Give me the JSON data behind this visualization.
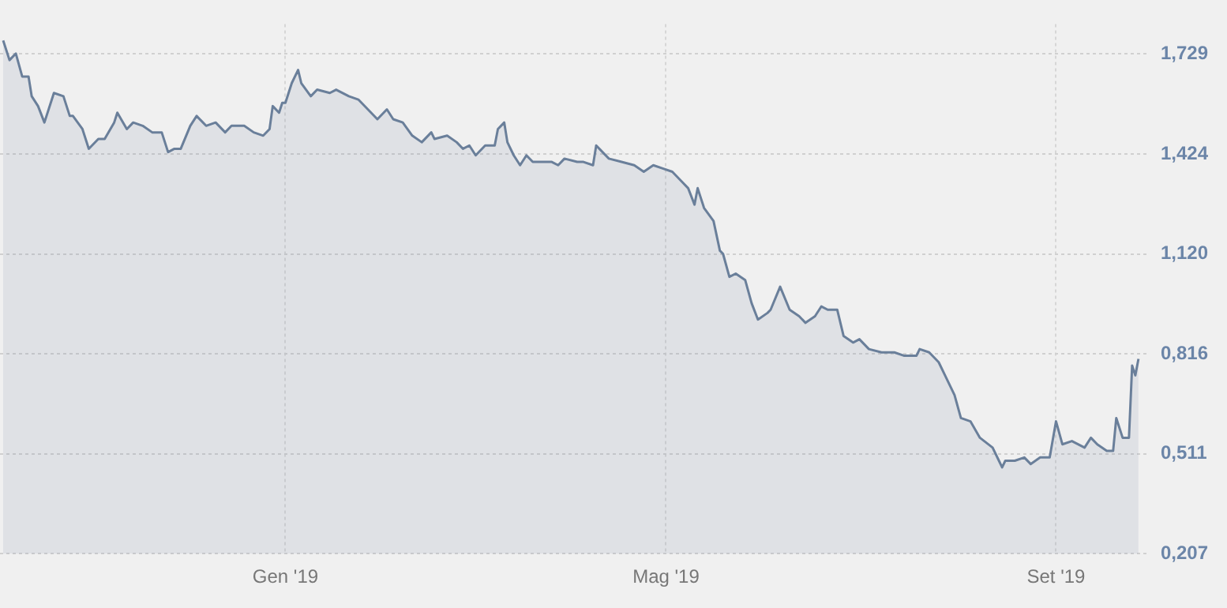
{
  "chart_data": {
    "type": "area",
    "x": [
      "2018-10-04",
      "2018-10-06",
      "2018-10-08",
      "2018-10-10",
      "2018-10-12",
      "2018-10-13",
      "2018-10-15",
      "2018-10-17",
      "2018-10-19",
      "2018-10-20",
      "2018-10-23",
      "2018-10-25",
      "2018-10-26",
      "2018-10-29",
      "2018-10-31",
      "2018-11-03",
      "2018-11-05",
      "2018-11-08",
      "2018-11-09",
      "2018-11-12",
      "2018-11-14",
      "2018-11-17",
      "2018-11-20",
      "2018-11-23",
      "2018-11-25",
      "2018-11-27",
      "2018-11-29",
      "2018-12-02",
      "2018-12-04",
      "2018-12-07",
      "2018-12-10",
      "2018-12-13",
      "2018-12-15",
      "2018-12-19",
      "2018-12-22",
      "2018-12-25",
      "2018-12-27",
      "2018-12-28",
      "2018-12-30",
      "2018-12-31",
      "2019-01-01",
      "2019-01-03",
      "2019-01-05",
      "2019-01-06",
      "2019-01-09",
      "2019-01-11",
      "2019-01-15",
      "2019-01-17",
      "2019-01-21",
      "2019-01-24",
      "2019-01-27",
      "2019-01-30",
      "2019-02-02",
      "2019-02-04",
      "2019-02-07",
      "2019-02-10",
      "2019-02-13",
      "2019-02-16",
      "2019-02-17",
      "2019-02-21",
      "2019-02-24",
      "2019-02-26",
      "2019-02-28",
      "2019-03-02",
      "2019-03-05",
      "2019-03-08",
      "2019-03-09",
      "2019-03-11",
      "2019-03-12",
      "2019-03-14",
      "2019-03-16",
      "2019-03-18",
      "2019-03-20",
      "2019-03-23",
      "2019-03-26",
      "2019-03-28",
      "2019-03-30",
      "2019-04-03",
      "2019-04-05",
      "2019-04-08",
      "2019-04-09",
      "2019-04-11",
      "2019-04-13",
      "2019-04-17",
      "2019-04-21",
      "2019-04-24",
      "2019-04-27",
      "2019-04-30",
      "2019-05-03",
      "2019-05-06",
      "2019-05-08",
      "2019-05-10",
      "2019-05-11",
      "2019-05-13",
      "2019-05-16",
      "2019-05-18",
      "2019-05-19",
      "2019-05-21",
      "2019-05-23",
      "2019-05-26",
      "2019-05-28",
      "2019-05-30",
      "2019-06-02",
      "2019-06-03",
      "2019-06-06",
      "2019-06-09",
      "2019-06-12",
      "2019-06-14",
      "2019-06-17",
      "2019-06-19",
      "2019-06-21",
      "2019-06-24",
      "2019-06-26",
      "2019-06-29",
      "2019-07-01",
      "2019-07-04",
      "2019-07-08",
      "2019-07-12",
      "2019-07-15",
      "2019-07-19",
      "2019-07-20",
      "2019-07-23",
      "2019-07-26",
      "2019-07-28",
      "2019-07-31",
      "2019-08-02",
      "2019-08-05",
      "2019-08-08",
      "2019-08-12",
      "2019-08-14",
      "2019-08-15",
      "2019-08-16",
      "2019-08-19",
      "2019-08-22",
      "2019-08-24",
      "2019-08-27",
      "2019-08-30",
      "2019-09-01",
      "2019-09-03",
      "2019-09-06",
      "2019-09-10",
      "2019-09-12",
      "2019-09-14",
      "2019-09-17",
      "2019-09-19",
      "2019-09-20",
      "2019-09-22",
      "2019-09-24",
      "2019-09-25",
      "2019-09-26",
      "2019-09-27"
    ],
    "series": [
      {
        "color": "#6a7f9a",
        "values": [
          1.77,
          1.71,
          1.73,
          1.66,
          1.66,
          1.6,
          1.57,
          1.52,
          1.58,
          1.61,
          1.6,
          1.54,
          1.54,
          1.5,
          1.44,
          1.47,
          1.47,
          1.52,
          1.55,
          1.5,
          1.52,
          1.51,
          1.49,
          1.49,
          1.43,
          1.44,
          1.44,
          1.51,
          1.54,
          1.51,
          1.52,
          1.49,
          1.51,
          1.51,
          1.49,
          1.48,
          1.5,
          1.57,
          1.55,
          1.58,
          1.58,
          1.64,
          1.68,
          1.64,
          1.6,
          1.62,
          1.61,
          1.62,
          1.6,
          1.59,
          1.56,
          1.53,
          1.56,
          1.53,
          1.52,
          1.48,
          1.46,
          1.49,
          1.47,
          1.48,
          1.46,
          1.44,
          1.45,
          1.42,
          1.45,
          1.45,
          1.5,
          1.52,
          1.46,
          1.42,
          1.39,
          1.42,
          1.4,
          1.4,
          1.4,
          1.39,
          1.41,
          1.4,
          1.4,
          1.39,
          1.45,
          1.43,
          1.41,
          1.4,
          1.39,
          1.37,
          1.39,
          1.38,
          1.37,
          1.34,
          1.32,
          1.27,
          1.32,
          1.26,
          1.22,
          1.13,
          1.12,
          1.05,
          1.06,
          1.04,
          0.97,
          0.92,
          0.94,
          0.95,
          1.02,
          0.95,
          0.93,
          0.91,
          0.93,
          0.96,
          0.95,
          0.95,
          0.87,
          0.85,
          0.86,
          0.83,
          0.82,
          0.82,
          0.81,
          0.81,
          0.83,
          0.82,
          0.79,
          0.75,
          0.69,
          0.62,
          0.61,
          0.56,
          0.53,
          0.49,
          0.47,
          0.49,
          0.49,
          0.5,
          0.48,
          0.5,
          0.5,
          0.61,
          0.54,
          0.55,
          0.53,
          0.56,
          0.54,
          0.52,
          0.52,
          0.62,
          0.56,
          0.56,
          0.78,
          0.75,
          0.8
        ]
      }
    ],
    "xlim": [
      "2018-10-03",
      "2019-09-30"
    ],
    "xticks": [
      {
        "value": "2019-01-01",
        "label": "Gen '19"
      },
      {
        "value": "2019-05-01",
        "label": "Mag '19"
      },
      {
        "value": "2019-09-01",
        "label": "Set '19"
      }
    ],
    "ylim": [
      0.207,
      1.82
    ],
    "yticks": [
      {
        "value": 0.207,
        "label": "0,207"
      },
      {
        "value": 0.511,
        "label": "0,511"
      },
      {
        "value": 0.816,
        "label": "0,816"
      },
      {
        "value": 1.12,
        "label": "1,120"
      },
      {
        "value": 1.424,
        "label": "1,424"
      },
      {
        "value": 1.729,
        "label": "1,729"
      }
    ],
    "grid": true,
    "marker": "none",
    "line_style": "solid"
  }
}
